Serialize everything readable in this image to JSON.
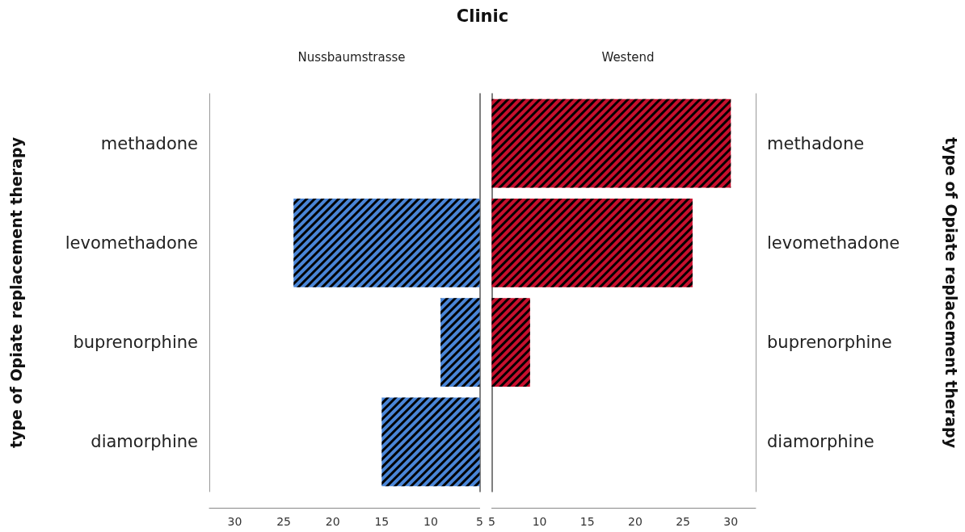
{
  "chart_data": [
    {
      "type": "bar",
      "orientation": "horizontal",
      "title": "Clinic",
      "subtitle": "Nussbaumstrasse",
      "ylabel": "type of Opiate replacement therapy",
      "categories": [
        "methadone",
        "levomethadone",
        "buprenorphine",
        "diamorphine"
      ],
      "values": [
        null,
        24,
        9,
        15
      ],
      "color": "#4a86d8",
      "xlim": [
        32.6,
        5
      ],
      "xticks": [
        30,
        25,
        20,
        15,
        10,
        5
      ],
      "grid": false
    },
    {
      "type": "bar",
      "orientation": "horizontal",
      "subtitle": "Westend",
      "ylabel": "type of Opiate replacement therapy",
      "categories": [
        "methadone",
        "levomethadone",
        "buprenorphine",
        "diamorphine"
      ],
      "values": [
        30,
        26,
        9,
        null
      ],
      "color": "#c8102e",
      "xlim": [
        5,
        32.6
      ],
      "xticks": [
        5,
        10,
        15,
        20,
        25,
        30
      ],
      "grid": false
    }
  ]
}
